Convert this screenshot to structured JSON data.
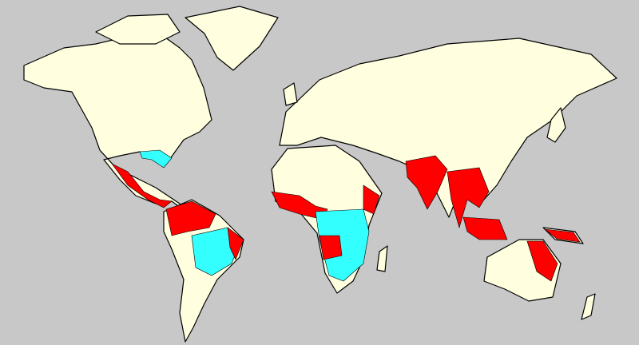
{
  "map": {
    "background_color": "#c8c8c8",
    "land_color": "#ffffe0",
    "border_color": "#000000",
    "zone_colors": {
      "red": "#ff0000",
      "cyan": "#33ffff"
    }
  }
}
